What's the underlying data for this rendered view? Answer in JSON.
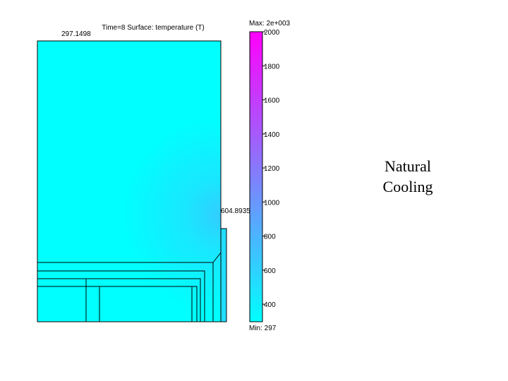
{
  "plot_title": "Time=8  Surface: temperature (T)",
  "annotations": [
    "297.1498",
    "604.8935"
  ],
  "colorbar": {
    "max_label": "Max: 2e+003",
    "min_label": "Min: 297",
    "range": [
      297,
      2000
    ],
    "ticks": [
      400,
      600,
      800,
      1000,
      1200,
      1400,
      1600,
      1800,
      2000
    ]
  },
  "side_label": [
    "Natural",
    "Cooling"
  ]
}
